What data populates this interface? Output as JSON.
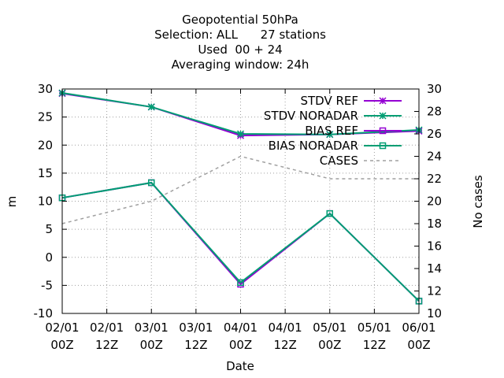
{
  "chart_data": {
    "type": "line",
    "title": [
      "Geopotential 50hPa",
      "Selection: ALL      27 stations",
      "Used  00 + 24",
      "Averaging window: 24h"
    ],
    "xlabel": "Date",
    "ylabel": "m",
    "y2label": "No cases",
    "x_ticks": [
      {
        "line1": "02/01",
        "line2": "00Z"
      },
      {
        "line1": "02/01",
        "line2": "12Z"
      },
      {
        "line1": "03/01",
        "line2": "00Z"
      },
      {
        "line1": "03/01",
        "line2": "12Z"
      },
      {
        "line1": "04/01",
        "line2": "00Z"
      },
      {
        "line1": "04/01",
        "line2": "12Z"
      },
      {
        "line1": "05/01",
        "line2": "00Z"
      },
      {
        "line1": "05/01",
        "line2": "12Z"
      },
      {
        "line1": "06/01",
        "line2": "00Z"
      }
    ],
    "xlim": [
      0,
      8
    ],
    "ylim": [
      -10,
      30
    ],
    "y_ticks": [
      -10,
      -5,
      0,
      5,
      10,
      15,
      20,
      25,
      30
    ],
    "y2lim": [
      10,
      30
    ],
    "y2_ticks": [
      10,
      12,
      14,
      16,
      18,
      20,
      22,
      24,
      26,
      28,
      30
    ],
    "grid": true,
    "legend_position": "top-right",
    "series": [
      {
        "name": "STDV REF",
        "axis": "y",
        "color": "#9400d3",
        "marker": "star",
        "dashed": false,
        "x": [
          0,
          2,
          4,
          6,
          8
        ],
        "values": [
          29.2,
          26.8,
          21.7,
          21.9,
          22.5
        ]
      },
      {
        "name": "STDV NORADAR",
        "axis": "y",
        "color": "#009e73",
        "marker": "star",
        "dashed": false,
        "x": [
          0,
          2,
          4,
          6,
          8
        ],
        "values": [
          29.3,
          26.8,
          22.0,
          21.9,
          22.7
        ]
      },
      {
        "name": "BIAS REF",
        "axis": "y",
        "color": "#9400d3",
        "marker": "square",
        "dashed": false,
        "x": [
          0,
          2,
          4,
          6,
          8
        ],
        "values": [
          10.6,
          13.3,
          -4.8,
          7.8,
          -7.8
        ]
      },
      {
        "name": "BIAS NORADAR",
        "axis": "y",
        "color": "#009e73",
        "marker": "square",
        "dashed": false,
        "x": [
          0,
          2,
          4,
          6,
          8
        ],
        "values": [
          10.6,
          13.3,
          -4.5,
          7.8,
          -7.8
        ]
      },
      {
        "name": "CASES",
        "axis": "y2",
        "color": "#a0a0a0",
        "marker": "none",
        "dashed": true,
        "x": [
          0,
          2,
          4,
          6,
          8
        ],
        "values": [
          18,
          20,
          24,
          22,
          22
        ]
      }
    ]
  }
}
